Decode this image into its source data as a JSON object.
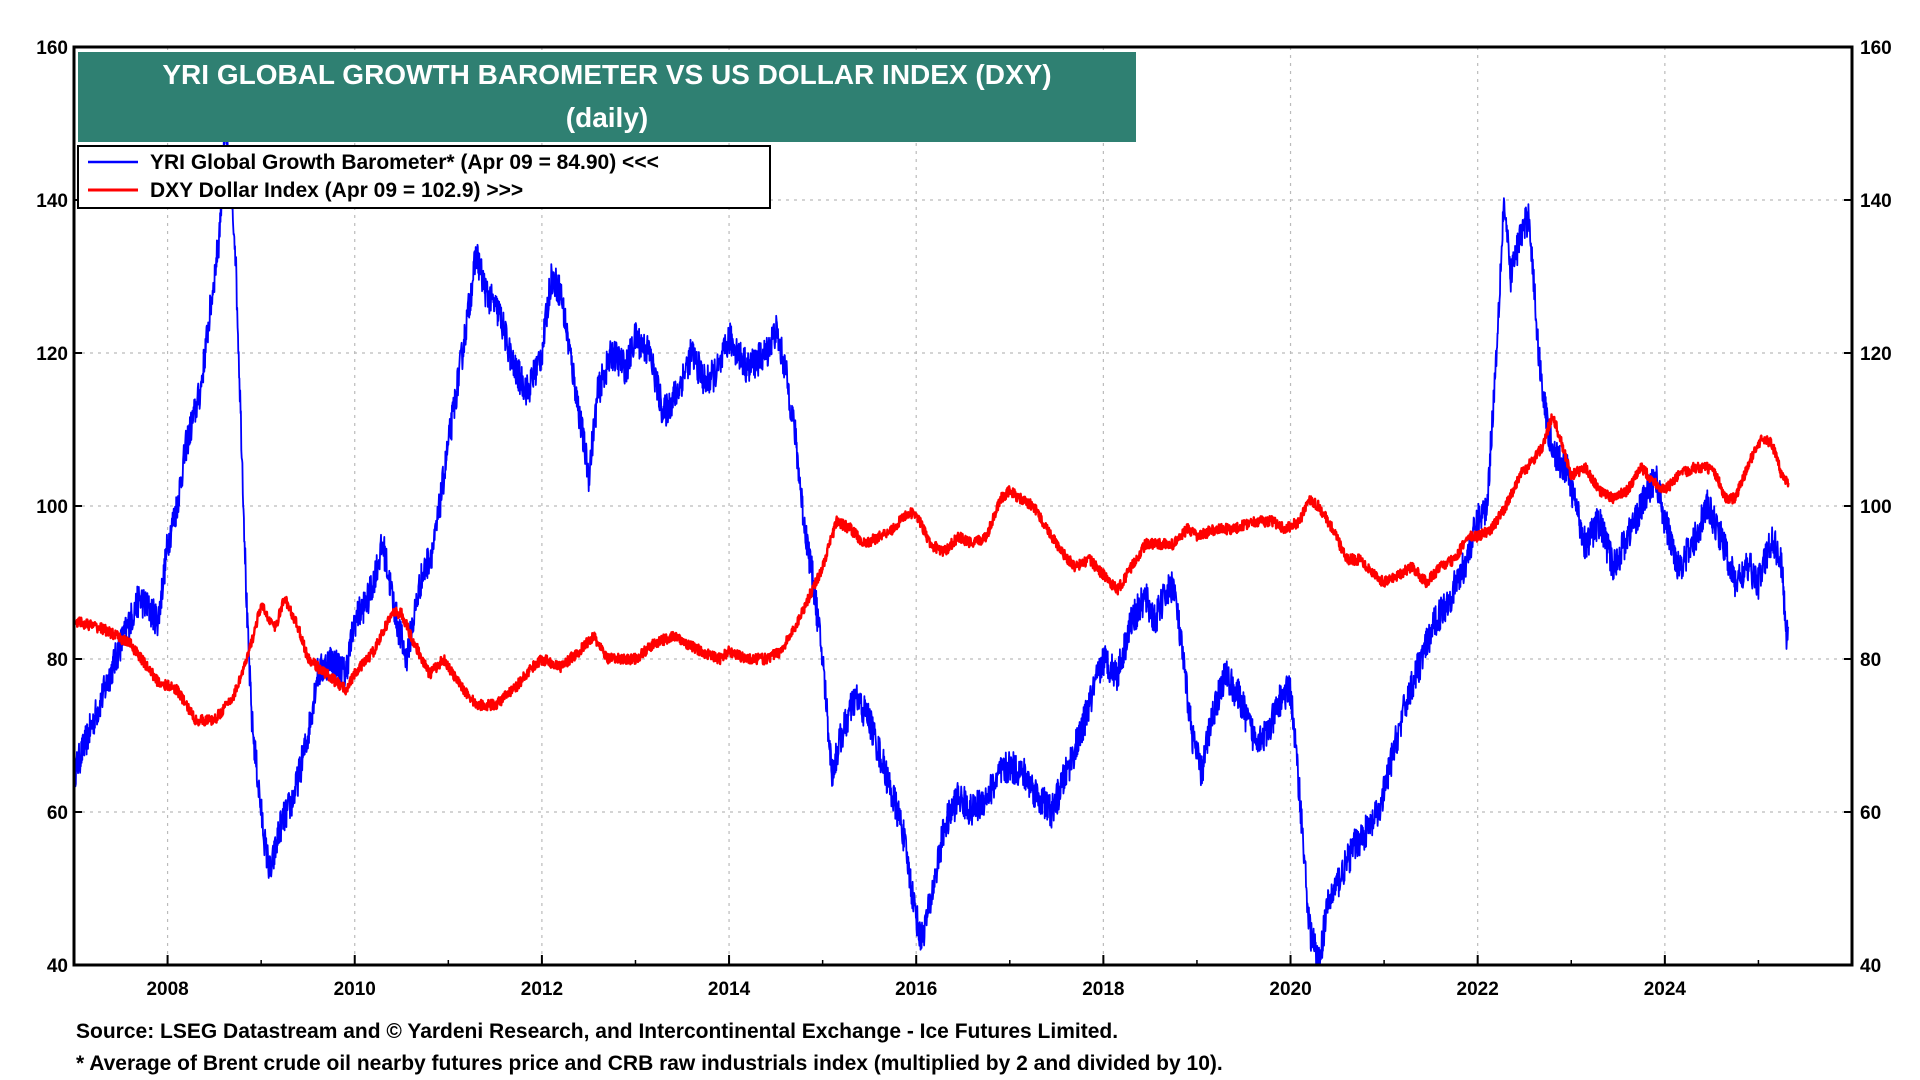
{
  "chart_data": {
    "type": "line",
    "title": "YRI GLOBAL GROWTH BAROMETER VS US DOLLAR INDEX (DXY)",
    "subtitle": "(daily)",
    "x_range": [
      2007.0,
      2026.0
    ],
    "x_ticks": [
      "2008",
      "2010",
      "2012",
      "2014",
      "2016",
      "2018",
      "2020",
      "2022",
      "2024"
    ],
    "x_tick_values": [
      2008,
      2010,
      2012,
      2014,
      2016,
      2018,
      2020,
      2022,
      2024
    ],
    "y_left": {
      "range": [
        40,
        160
      ],
      "ticks": [
        "40",
        "60",
        "80",
        "100",
        "120",
        "140",
        "160"
      ],
      "tick_values": [
        40,
        60,
        80,
        100,
        120,
        140,
        160
      ]
    },
    "y_right": {
      "range": [
        40,
        160
      ],
      "ticks": [
        "40",
        "60",
        "80",
        "100",
        "120",
        "140",
        "160"
      ],
      "tick_values": [
        40,
        60,
        80,
        100,
        120,
        140,
        160
      ]
    },
    "grid": true,
    "legend_placement": "top-left",
    "series": [
      {
        "name": "YRI Global Growth Barometer* (Apr 09 = 84.90) <<<",
        "axis": "left",
        "color": "#0000ff",
        "points": [
          [
            2007.0,
            65
          ],
          [
            2007.3,
            75
          ],
          [
            2007.5,
            82
          ],
          [
            2007.7,
            88
          ],
          [
            2007.9,
            85
          ],
          [
            2008.0,
            95
          ],
          [
            2008.1,
            100
          ],
          [
            2008.2,
            108
          ],
          [
            2008.35,
            115
          ],
          [
            2008.45,
            125
          ],
          [
            2008.55,
            135
          ],
          [
            2008.62,
            150
          ],
          [
            2008.66,
            142
          ],
          [
            2008.72,
            135
          ],
          [
            2008.76,
            120
          ],
          [
            2008.8,
            105
          ],
          [
            2008.85,
            85
          ],
          [
            2008.9,
            72
          ],
          [
            2009.0,
            60
          ],
          [
            2009.05,
            55
          ],
          [
            2009.1,
            52
          ],
          [
            2009.2,
            58
          ],
          [
            2009.35,
            62
          ],
          [
            2009.5,
            70
          ],
          [
            2009.6,
            78
          ],
          [
            2009.75,
            80
          ],
          [
            2009.9,
            78
          ],
          [
            2010.0,
            85
          ],
          [
            2010.15,
            88
          ],
          [
            2010.3,
            95
          ],
          [
            2010.45,
            85
          ],
          [
            2010.55,
            80
          ],
          [
            2010.7,
            90
          ],
          [
            2010.85,
            95
          ],
          [
            2011.0,
            108
          ],
          [
            2011.15,
            120
          ],
          [
            2011.3,
            133
          ],
          [
            2011.4,
            128
          ],
          [
            2011.55,
            125
          ],
          [
            2011.7,
            118
          ],
          [
            2011.85,
            115
          ],
          [
            2012.0,
            120
          ],
          [
            2012.1,
            130
          ],
          [
            2012.2,
            128
          ],
          [
            2012.3,
            120
          ],
          [
            2012.4,
            112
          ],
          [
            2012.5,
            104
          ],
          [
            2012.6,
            115
          ],
          [
            2012.75,
            120
          ],
          [
            2012.9,
            118
          ],
          [
            2013.0,
            122
          ],
          [
            2013.15,
            120
          ],
          [
            2013.3,
            112
          ],
          [
            2013.45,
            115
          ],
          [
            2013.6,
            120
          ],
          [
            2013.75,
            116
          ],
          [
            2013.9,
            118
          ],
          [
            2014.0,
            122
          ],
          [
            2014.2,
            118
          ],
          [
            2014.4,
            120
          ],
          [
            2014.5,
            123
          ],
          [
            2014.6,
            118
          ],
          [
            2014.7,
            110
          ],
          [
            2014.8,
            98
          ],
          [
            2014.9,
            90
          ],
          [
            2015.0,
            80
          ],
          [
            2015.1,
            65
          ],
          [
            2015.2,
            70
          ],
          [
            2015.35,
            75
          ],
          [
            2015.5,
            72
          ],
          [
            2015.6,
            68
          ],
          [
            2015.75,
            62
          ],
          [
            2015.85,
            58
          ],
          [
            2015.95,
            50
          ],
          [
            2016.05,
            43
          ],
          [
            2016.15,
            48
          ],
          [
            2016.3,
            58
          ],
          [
            2016.45,
            62
          ],
          [
            2016.6,
            60
          ],
          [
            2016.75,
            62
          ],
          [
            2016.9,
            65
          ],
          [
            2017.0,
            66
          ],
          [
            2017.15,
            65
          ],
          [
            2017.3,
            62
          ],
          [
            2017.45,
            60
          ],
          [
            2017.6,
            65
          ],
          [
            2017.75,
            70
          ],
          [
            2017.9,
            76
          ],
          [
            2018.0,
            80
          ],
          [
            2018.15,
            78
          ],
          [
            2018.3,
            85
          ],
          [
            2018.45,
            88
          ],
          [
            2018.55,
            85
          ],
          [
            2018.65,
            88
          ],
          [
            2018.75,
            90
          ],
          [
            2018.85,
            80
          ],
          [
            2018.95,
            70
          ],
          [
            2019.05,
            65
          ],
          [
            2019.15,
            72
          ],
          [
            2019.3,
            78
          ],
          [
            2019.45,
            75
          ],
          [
            2019.6,
            70
          ],
          [
            2019.75,
            70
          ],
          [
            2019.9,
            75
          ],
          [
            2020.0,
            76
          ],
          [
            2020.1,
            62
          ],
          [
            2020.2,
            45
          ],
          [
            2020.3,
            40
          ],
          [
            2020.4,
            48
          ],
          [
            2020.55,
            52
          ],
          [
            2020.7,
            56
          ],
          [
            2020.85,
            58
          ],
          [
            2020.95,
            60
          ],
          [
            2021.1,
            68
          ],
          [
            2021.25,
            75
          ],
          [
            2021.4,
            80
          ],
          [
            2021.55,
            85
          ],
          [
            2021.7,
            88
          ],
          [
            2021.85,
            92
          ],
          [
            2022.0,
            98
          ],
          [
            2022.1,
            100
          ],
          [
            2022.2,
            120
          ],
          [
            2022.28,
            140
          ],
          [
            2022.35,
            130
          ],
          [
            2022.45,
            135
          ],
          [
            2022.55,
            138
          ],
          [
            2022.65,
            120
          ],
          [
            2022.75,
            110
          ],
          [
            2022.85,
            106
          ],
          [
            2022.95,
            105
          ],
          [
            2023.05,
            100
          ],
          [
            2023.15,
            95
          ],
          [
            2023.3,
            98
          ],
          [
            2023.45,
            92
          ],
          [
            2023.6,
            96
          ],
          [
            2023.75,
            100
          ],
          [
            2023.9,
            104
          ],
          [
            2024.0,
            98
          ],
          [
            2024.15,
            92
          ],
          [
            2024.3,
            95
          ],
          [
            2024.45,
            100
          ],
          [
            2024.6,
            96
          ],
          [
            2024.75,
            90
          ],
          [
            2024.9,
            92
          ],
          [
            2025.0,
            90
          ],
          [
            2025.1,
            94
          ],
          [
            2025.15,
            96
          ],
          [
            2025.25,
            92
          ],
          [
            2025.3,
            83
          ],
          [
            2025.32,
            84
          ]
        ]
      },
      {
        "name": "DXY Dollar Index (Apr 09 = 102.9) >>>",
        "axis": "right",
        "color": "#ff0000",
        "points": [
          [
            2007.0,
            85
          ],
          [
            2007.3,
            84
          ],
          [
            2007.6,
            82
          ],
          [
            2007.9,
            77
          ],
          [
            2008.1,
            76
          ],
          [
            2008.3,
            72
          ],
          [
            2008.5,
            72
          ],
          [
            2008.7,
            75
          ],
          [
            2008.85,
            80
          ],
          [
            2009.0,
            87
          ],
          [
            2009.15,
            84
          ],
          [
            2009.25,
            88
          ],
          [
            2009.4,
            84
          ],
          [
            2009.5,
            80
          ],
          [
            2009.7,
            78
          ],
          [
            2009.9,
            76
          ],
          [
            2010.0,
            78
          ],
          [
            2010.2,
            81
          ],
          [
            2010.4,
            86
          ],
          [
            2010.5,
            86
          ],
          [
            2010.6,
            83
          ],
          [
            2010.8,
            78
          ],
          [
            2010.95,
            80
          ],
          [
            2011.1,
            77
          ],
          [
            2011.3,
            74
          ],
          [
            2011.5,
            74
          ],
          [
            2011.7,
            76
          ],
          [
            2011.9,
            79
          ],
          [
            2012.0,
            80
          ],
          [
            2012.2,
            79
          ],
          [
            2012.4,
            81
          ],
          [
            2012.55,
            83
          ],
          [
            2012.7,
            80
          ],
          [
            2012.9,
            80
          ],
          [
            2013.0,
            80
          ],
          [
            2013.2,
            82
          ],
          [
            2013.4,
            83
          ],
          [
            2013.55,
            82
          ],
          [
            2013.7,
            81
          ],
          [
            2013.9,
            80
          ],
          [
            2014.0,
            81
          ],
          [
            2014.2,
            80
          ],
          [
            2014.4,
            80
          ],
          [
            2014.55,
            81
          ],
          [
            2014.7,
            84
          ],
          [
            2014.85,
            88
          ],
          [
            2015.0,
            92
          ],
          [
            2015.15,
            98
          ],
          [
            2015.3,
            97
          ],
          [
            2015.45,
            95
          ],
          [
            2015.6,
            96
          ],
          [
            2015.75,
            97
          ],
          [
            2015.9,
            99
          ],
          [
            2016.0,
            99
          ],
          [
            2016.15,
            95
          ],
          [
            2016.3,
            94
          ],
          [
            2016.45,
            96
          ],
          [
            2016.6,
            95
          ],
          [
            2016.75,
            96
          ],
          [
            2016.9,
            101
          ],
          [
            2017.0,
            102
          ],
          [
            2017.1,
            101
          ],
          [
            2017.25,
            100
          ],
          [
            2017.4,
            97
          ],
          [
            2017.55,
            94
          ],
          [
            2017.7,
            92
          ],
          [
            2017.85,
            93
          ],
          [
            2018.0,
            91
          ],
          [
            2018.15,
            89
          ],
          [
            2018.3,
            92
          ],
          [
            2018.45,
            95
          ],
          [
            2018.6,
            95
          ],
          [
            2018.75,
            95
          ],
          [
            2018.9,
            97
          ],
          [
            2019.0,
            96
          ],
          [
            2019.2,
            97
          ],
          [
            2019.4,
            97
          ],
          [
            2019.6,
            98
          ],
          [
            2019.8,
            98
          ],
          [
            2019.95,
            97
          ],
          [
            2020.1,
            98
          ],
          [
            2020.2,
            101
          ],
          [
            2020.3,
            100
          ],
          [
            2020.45,
            97
          ],
          [
            2020.6,
            93
          ],
          [
            2020.75,
            93
          ],
          [
            2020.9,
            91
          ],
          [
            2021.0,
            90
          ],
          [
            2021.15,
            91
          ],
          [
            2021.3,
            92
          ],
          [
            2021.45,
            90
          ],
          [
            2021.6,
            92
          ],
          [
            2021.75,
            93
          ],
          [
            2021.9,
            96
          ],
          [
            2022.0,
            96
          ],
          [
            2022.15,
            97
          ],
          [
            2022.3,
            100
          ],
          [
            2022.45,
            104
          ],
          [
            2022.6,
            106
          ],
          [
            2022.7,
            108
          ],
          [
            2022.8,
            112
          ],
          [
            2022.9,
            108
          ],
          [
            2023.0,
            104
          ],
          [
            2023.15,
            105
          ],
          [
            2023.3,
            102
          ],
          [
            2023.45,
            101
          ],
          [
            2023.6,
            102
          ],
          [
            2023.75,
            105
          ],
          [
            2023.9,
            103
          ],
          [
            2024.0,
            102
          ],
          [
            2024.15,
            104
          ],
          [
            2024.3,
            105
          ],
          [
            2024.45,
            105
          ],
          [
            2024.55,
            104
          ],
          [
            2024.65,
            101
          ],
          [
            2024.75,
            101
          ],
          [
            2024.85,
            104
          ],
          [
            2024.95,
            107
          ],
          [
            2025.05,
            109
          ],
          [
            2025.15,
            108
          ],
          [
            2025.25,
            104
          ],
          [
            2025.32,
            103
          ]
        ]
      }
    ]
  },
  "footnotes": {
    "source": "Source: LSEG Datastream and © Yardeni Research, and Intercontinental Exchange - Ice Futures Limited.",
    "note": "* Average of Brent crude oil nearby futures price and CRB raw industrials index (multiplied by 2 and divided by 10)."
  },
  "colors": {
    "title_bg": "#2f8072",
    "grid": "#bbbbbb",
    "axis": "#000000"
  }
}
